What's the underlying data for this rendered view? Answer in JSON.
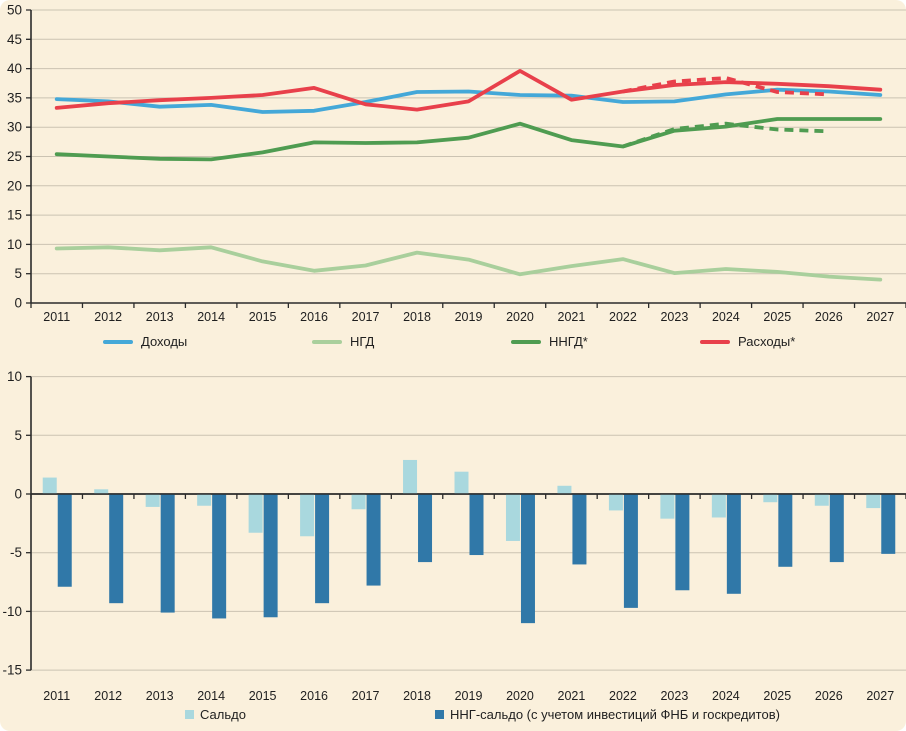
{
  "colors": {
    "background": "#faf0dc",
    "grid": "#cbc3b2",
    "axis": "#2b2b2b",
    "text": "#1f1f1f",
    "revenue_blue": "#44a8d8",
    "oilgas_light_green": "#a9cf9c",
    "nonoilgas_dark_green": "#4f9c51",
    "expense_red": "#e8404b",
    "balance_light_blue": "#a9d8de",
    "nng_balance_dark_blue": "#3078a8"
  },
  "chart_data": [
    {
      "type": "line",
      "title": "",
      "categories": [
        "2011",
        "2012",
        "2013",
        "2014",
        "2015",
        "2016",
        "2017",
        "2018",
        "2019",
        "2020",
        "2021",
        "2022",
        "2023",
        "2024",
        "2025",
        "2026",
        "2027"
      ],
      "ylim": [
        0,
        50
      ],
      "ytick_step": 5,
      "grid": true,
      "legend_position": "bottom",
      "series": [
        {
          "id": "dohody",
          "label": "Доходы",
          "color": "#44a8d8",
          "dash": false,
          "values": [
            34.8,
            34.4,
            33.5,
            33.8,
            32.6,
            32.8,
            34.3,
            36.0,
            36.1,
            35.5,
            35.4,
            34.3,
            34.4,
            35.6,
            36.4,
            36.1,
            35.5
          ]
        },
        {
          "id": "ngd",
          "label": "НГД",
          "color": "#a9cf9c",
          "dash": false,
          "values": [
            9.3,
            9.5,
            9.0,
            9.5,
            7.1,
            5.5,
            6.4,
            8.6,
            7.4,
            4.9,
            6.3,
            7.5,
            5.1,
            5.8,
            5.3,
            4.5,
            4.0
          ]
        },
        {
          "id": "nngd",
          "label": "ННГД*",
          "color": "#4f9c51",
          "dash": false,
          "values": [
            25.4,
            25.0,
            24.6,
            24.5,
            25.7,
            27.4,
            27.3,
            27.4,
            28.2,
            30.6,
            27.8,
            26.7,
            29.4,
            30.1,
            31.4,
            31.4,
            31.4
          ]
        },
        {
          "id": "rashody",
          "label": "Расходы*",
          "color": "#e8404b",
          "dash": false,
          "values": [
            33.3,
            34.1,
            34.6,
            35.0,
            35.5,
            36.7,
            33.9,
            33.0,
            34.4,
            39.6,
            34.7,
            36.1,
            37.2,
            37.7,
            37.4,
            37.0,
            36.4
          ]
        },
        {
          "id": "rashody-dashed",
          "label": "",
          "color": "#e8404b",
          "dash": true,
          "values": [
            null,
            null,
            null,
            null,
            null,
            null,
            null,
            null,
            null,
            null,
            null,
            36.1,
            37.8,
            38.4,
            36.0,
            35.6,
            null
          ]
        },
        {
          "id": "nngd-dashed",
          "label": "",
          "color": "#4f9c51",
          "dash": true,
          "values": [
            null,
            null,
            null,
            null,
            null,
            null,
            null,
            null,
            null,
            null,
            null,
            26.7,
            29.7,
            30.6,
            29.6,
            29.3,
            null
          ]
        }
      ]
    },
    {
      "type": "bar",
      "title": "",
      "categories": [
        "2011",
        "2012",
        "2013",
        "2014",
        "2015",
        "2016",
        "2017",
        "2018",
        "2019",
        "2020",
        "2021",
        "2022",
        "2023",
        "2024",
        "2025",
        "2026",
        "2027"
      ],
      "ylim": [
        -15,
        10
      ],
      "ytick_step": 5,
      "grid": true,
      "legend_position": "bottom",
      "series": [
        {
          "id": "saldo",
          "label": "Сальдо",
          "color": "#a9d8de",
          "values": [
            1.4,
            0.4,
            -1.1,
            -1.0,
            -3.3,
            -3.6,
            -1.3,
            2.9,
            1.9,
            -4.0,
            0.7,
            -1.4,
            -2.1,
            -2.0,
            -0.7,
            -1.0,
            -1.2
          ]
        },
        {
          "id": "nng-saldo",
          "label": "ННГ-сальдо (с учетом инвестиций ФНБ и госкредитов)",
          "color": "#3078a8",
          "values": [
            -7.9,
            -9.3,
            -10.1,
            -10.6,
            -10.5,
            -9.3,
            -7.8,
            -5.8,
            -5.2,
            -11.0,
            -6.0,
            -9.7,
            -8.2,
            -8.5,
            -6.2,
            -5.8,
            -5.1
          ]
        }
      ]
    }
  ]
}
